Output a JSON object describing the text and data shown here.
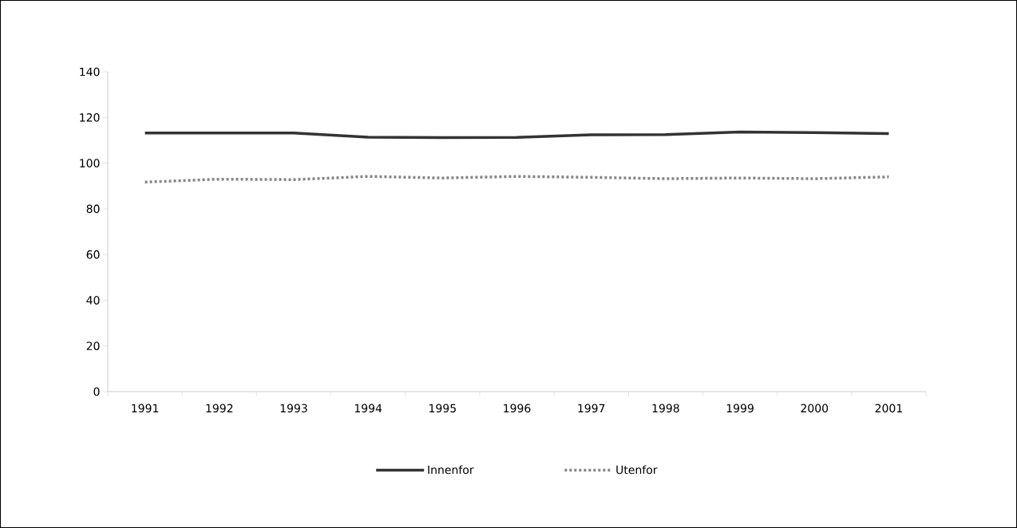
{
  "chart_data": {
    "type": "line",
    "categories": [
      "1991",
      "1992",
      "1993",
      "1994",
      "1995",
      "1996",
      "1997",
      "1998",
      "1999",
      "2000",
      "2001"
    ],
    "series": [
      {
        "name": "Innenfor",
        "color": "#333333",
        "line_style": "solid",
        "values": [
          113.2,
          113.2,
          113.2,
          111.4,
          111.2,
          111.3,
          112.4,
          112.5,
          113.6,
          113.4,
          112.9
        ]
      },
      {
        "name": "Utenfor",
        "color": "#858585",
        "line_style": "dotted",
        "values": [
          91.7,
          93.0,
          92.8,
          94.2,
          93.5,
          94.2,
          93.8,
          93.2,
          93.5,
          93.2,
          94.0
        ]
      }
    ],
    "ylim": [
      0,
      140
    ],
    "yticks": [
      0,
      20,
      40,
      60,
      80,
      100,
      120,
      140
    ],
    "grid": false,
    "legend": "bottom",
    "marker": "none"
  }
}
